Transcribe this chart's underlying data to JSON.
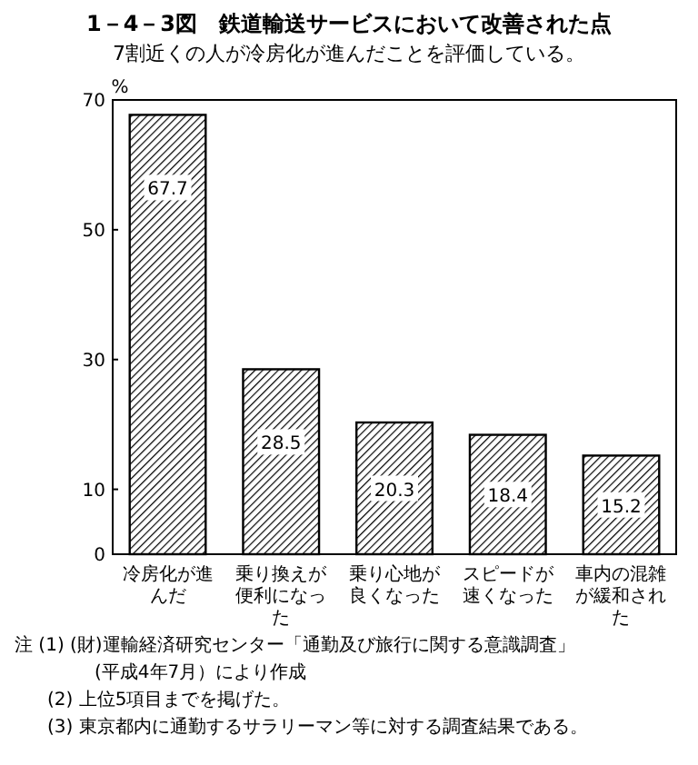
{
  "chart_data": {
    "type": "bar",
    "title": "1－4－3図　鉄道輸送サービスにおいて改善された点",
    "subtitle": "7割近くの人が冷房化が進んだことを評価している。",
    "ylabel": "%",
    "categories": [
      "冷房化が進んだ",
      "乗り換えが便利になった",
      "乗り心地が良くなった",
      "スピードが速くなった",
      "車内の混雑が緩和された"
    ],
    "values": [
      67.7,
      28.5,
      20.3,
      18.4,
      15.2
    ],
    "color": "#000000",
    "data_labels": true,
    "ylim": [
      0,
      70
    ],
    "yticks": [
      0,
      10,
      30,
      50,
      70
    ],
    "grid": false,
    "annotations": [
      "注 (1) (財)運輸経済研究センター「通勤及び旅行に関する意識調査」(平成4年7月）により作成",
      "(2) 上位5項目までを掲げた。",
      "(3) 東京都内に通勤するサラリーマン等に対する調査結果である。"
    ]
  }
}
